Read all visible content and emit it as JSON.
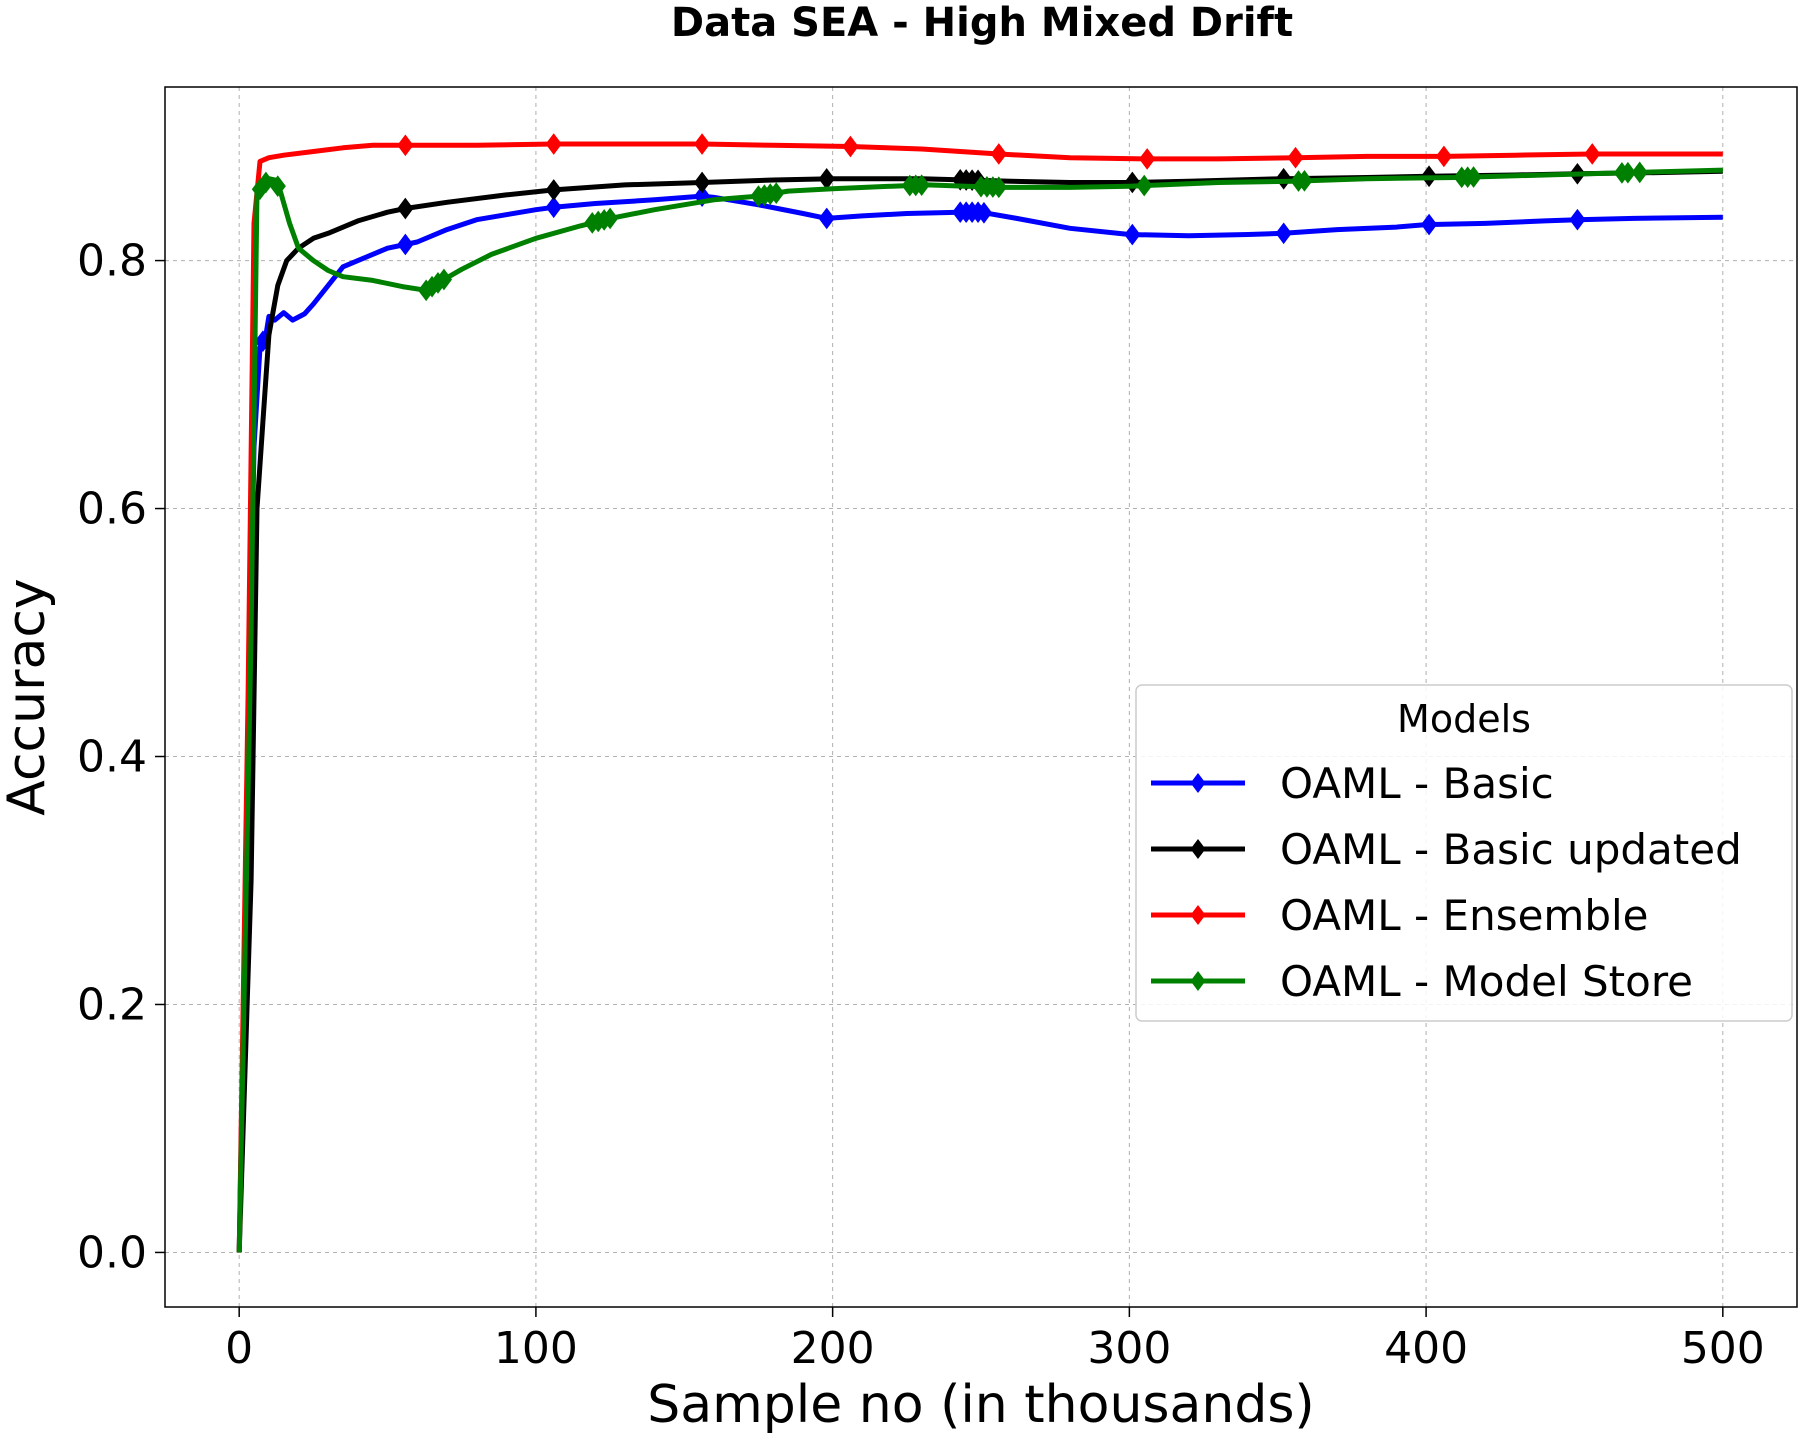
{
  "chart_data": {
    "type": "line",
    "title": "Data SEA - High Mixed Drift",
    "xlabel": "Sample no (in thousands)",
    "ylabel": "Accuracy",
    "xlim": [
      -25,
      525
    ],
    "ylim": [
      -0.044,
      0.94
    ],
    "xticks": [
      0,
      100,
      200,
      300,
      400,
      500
    ],
    "yticks": [
      0.0,
      0.2,
      0.4,
      0.6,
      0.8
    ],
    "xtick_labels": [
      "0",
      "100",
      "200",
      "300",
      "400",
      "500"
    ],
    "ytick_labels": [
      "0.0",
      "0.2",
      "0.4",
      "0.6",
      "0.8"
    ],
    "grid": true,
    "legend": {
      "title": "Models",
      "placement": "center-right"
    },
    "series": [
      {
        "name": "OAML - Basic",
        "color": "#0000ff",
        "marker": "diamond",
        "points": [
          [
            0,
            0.0
          ],
          [
            3,
            0.4
          ],
          [
            5,
            0.65
          ],
          [
            7,
            0.73
          ],
          [
            9,
            0.74
          ],
          [
            10,
            0.755
          ],
          [
            12,
            0.752
          ],
          [
            15,
            0.758
          ],
          [
            18,
            0.752
          ],
          [
            22,
            0.757
          ],
          [
            25,
            0.765
          ],
          [
            30,
            0.78
          ],
          [
            35,
            0.795
          ],
          [
            40,
            0.8
          ],
          [
            50,
            0.81
          ],
          [
            56,
            0.813
          ],
          [
            60,
            0.815
          ],
          [
            70,
            0.825
          ],
          [
            80,
            0.833
          ],
          [
            90,
            0.837
          ],
          [
            100,
            0.841
          ],
          [
            106,
            0.843
          ],
          [
            120,
            0.846
          ],
          [
            140,
            0.849
          ],
          [
            156,
            0.852
          ],
          [
            160,
            0.851
          ],
          [
            175,
            0.845
          ],
          [
            190,
            0.838
          ],
          [
            198,
            0.834
          ],
          [
            210,
            0.836
          ],
          [
            225,
            0.838
          ],
          [
            243,
            0.839
          ],
          [
            250,
            0.839
          ],
          [
            262,
            0.834
          ],
          [
            280,
            0.826
          ],
          [
            300,
            0.821
          ],
          [
            320,
            0.82
          ],
          [
            340,
            0.821
          ],
          [
            352,
            0.822
          ],
          [
            370,
            0.825
          ],
          [
            390,
            0.827
          ],
          [
            400,
            0.829
          ],
          [
            420,
            0.83
          ],
          [
            440,
            0.832
          ],
          [
            451,
            0.833
          ],
          [
            470,
            0.834
          ],
          [
            500,
            0.835
          ]
        ],
        "marker_x": [
          8,
          56,
          106,
          156,
          198,
          243,
          245,
          247,
          249,
          251,
          301,
          352,
          401,
          451
        ]
      },
      {
        "name": "OAML - Basic updated",
        "color": "#000000",
        "marker": "diamond",
        "points": [
          [
            0,
            0.0
          ],
          [
            4,
            0.3
          ],
          [
            6,
            0.6
          ],
          [
            8,
            0.67
          ],
          [
            10,
            0.74
          ],
          [
            13,
            0.78
          ],
          [
            16,
            0.8
          ],
          [
            20,
            0.81
          ],
          [
            25,
            0.818
          ],
          [
            30,
            0.822
          ],
          [
            40,
            0.832
          ],
          [
            50,
            0.839
          ],
          [
            56,
            0.842
          ],
          [
            70,
            0.847
          ],
          [
            90,
            0.853
          ],
          [
            106,
            0.857
          ],
          [
            130,
            0.861
          ],
          [
            156,
            0.863
          ],
          [
            180,
            0.865
          ],
          [
            200,
            0.866
          ],
          [
            230,
            0.866
          ],
          [
            245,
            0.865
          ],
          [
            260,
            0.864
          ],
          [
            280,
            0.863
          ],
          [
            301,
            0.863
          ],
          [
            320,
            0.864
          ],
          [
            352,
            0.866
          ],
          [
            380,
            0.867
          ],
          [
            401,
            0.868
          ],
          [
            430,
            0.869
          ],
          [
            451,
            0.87
          ],
          [
            480,
            0.871
          ],
          [
            500,
            0.872
          ]
        ],
        "marker_x": [
          56,
          106,
          156,
          198,
          243,
          245,
          247,
          249,
          301,
          352,
          401,
          451
        ]
      },
      {
        "name": "OAML - Ensemble",
        "color": "#ff0000",
        "marker": "diamond",
        "points": [
          [
            0,
            0.0
          ],
          [
            3,
            0.45
          ],
          [
            5,
            0.83
          ],
          [
            7,
            0.88
          ],
          [
            10,
            0.883
          ],
          [
            15,
            0.885
          ],
          [
            25,
            0.888
          ],
          [
            35,
            0.891
          ],
          [
            45,
            0.893
          ],
          [
            56,
            0.893
          ],
          [
            80,
            0.893
          ],
          [
            106,
            0.894
          ],
          [
            130,
            0.894
          ],
          [
            156,
            0.894
          ],
          [
            180,
            0.893
          ],
          [
            206,
            0.892
          ],
          [
            230,
            0.89
          ],
          [
            256,
            0.886
          ],
          [
            280,
            0.883
          ],
          [
            306,
            0.882
          ],
          [
            330,
            0.882
          ],
          [
            356,
            0.883
          ],
          [
            380,
            0.884
          ],
          [
            406,
            0.884
          ],
          [
            430,
            0.885
          ],
          [
            456,
            0.886
          ],
          [
            480,
            0.886
          ],
          [
            500,
            0.886
          ]
        ],
        "marker_x": [
          56,
          106,
          156,
          206,
          256,
          306,
          356,
          406,
          456
        ]
      },
      {
        "name": "OAML - Model Store",
        "color": "#008000",
        "marker": "diamond",
        "points": [
          [
            0,
            0.0
          ],
          [
            4,
            0.5
          ],
          [
            6,
            0.855
          ],
          [
            8,
            0.86
          ],
          [
            10,
            0.866
          ],
          [
            12,
            0.865
          ],
          [
            14,
            0.855
          ],
          [
            17,
            0.83
          ],
          [
            20,
            0.81
          ],
          [
            25,
            0.8
          ],
          [
            30,
            0.792
          ],
          [
            35,
            0.787
          ],
          [
            45,
            0.784
          ],
          [
            55,
            0.779
          ],
          [
            63,
            0.776
          ],
          [
            67,
            0.782
          ],
          [
            75,
            0.793
          ],
          [
            85,
            0.805
          ],
          [
            100,
            0.818
          ],
          [
            115,
            0.828
          ],
          [
            125,
            0.834
          ],
          [
            140,
            0.841
          ],
          [
            160,
            0.849
          ],
          [
            175,
            0.852
          ],
          [
            185,
            0.856
          ],
          [
            200,
            0.858
          ],
          [
            220,
            0.86
          ],
          [
            232,
            0.861
          ],
          [
            245,
            0.86
          ],
          [
            258,
            0.859
          ],
          [
            280,
            0.859
          ],
          [
            300,
            0.86
          ],
          [
            330,
            0.863
          ],
          [
            355,
            0.864
          ],
          [
            380,
            0.866
          ],
          [
            410,
            0.867
          ],
          [
            440,
            0.869
          ],
          [
            470,
            0.871
          ],
          [
            500,
            0.873
          ]
        ],
        "marker_x": [
          7,
          9,
          13,
          63,
          65,
          67,
          69,
          119,
          121,
          123,
          125,
          175,
          177,
          179,
          181,
          226,
          228,
          230,
          250,
          252,
          254,
          256,
          305,
          357,
          359,
          412,
          414,
          416,
          466,
          468,
          472
        ]
      }
    ]
  }
}
